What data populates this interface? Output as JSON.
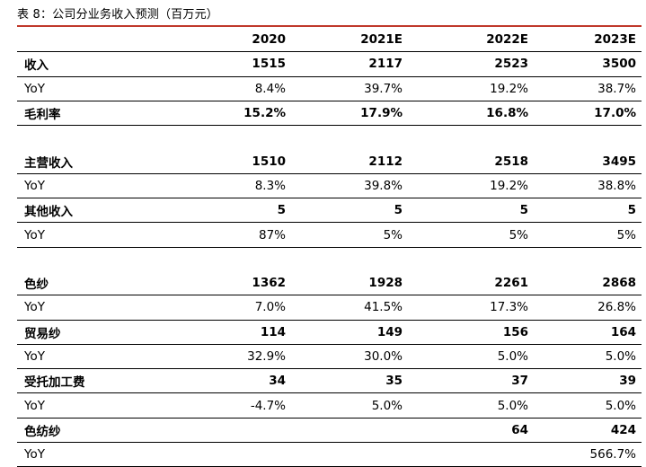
{
  "caption": "表 8：公司分业务收入预测（百万元）",
  "columns": [
    "",
    "2020",
    "2021E",
    "2022E",
    "2023E"
  ],
  "rows": [
    {
      "label": "收入",
      "values": [
        "1515",
        "2117",
        "2523",
        "3500"
      ],
      "bold": true
    },
    {
      "label": "YoY",
      "values": [
        "8.4%",
        "39.7%",
        "19.2%",
        "38.7%"
      ],
      "bold": false
    },
    {
      "label": "毛利率",
      "values": [
        "15.2%",
        "17.9%",
        "16.8%",
        "17.0%"
      ],
      "bold": true
    },
    {
      "label": "",
      "values": [
        "",
        "",
        "",
        ""
      ],
      "bold": false
    },
    {
      "label": "主营收入",
      "values": [
        "1510",
        "2112",
        "2518",
        "3495"
      ],
      "bold": true
    },
    {
      "label": "YoY",
      "values": [
        "8.3%",
        "39.8%",
        "19.2%",
        "38.8%"
      ],
      "bold": false
    },
    {
      "label": "其他收入",
      "values": [
        "5",
        "5",
        "5",
        "5"
      ],
      "bold": true
    },
    {
      "label": "YoY",
      "values": [
        "87%",
        "5%",
        "5%",
        "5%"
      ],
      "bold": false
    },
    {
      "label": "",
      "values": [
        "",
        "",
        "",
        ""
      ],
      "bold": false
    },
    {
      "label": "色纱",
      "values": [
        "1362",
        "1928",
        "2261",
        "2868"
      ],
      "bold": true
    },
    {
      "label": "YoY",
      "values": [
        "7.0%",
        "41.5%",
        "17.3%",
        "26.8%"
      ],
      "bold": false
    },
    {
      "label": "贸易纱",
      "values": [
        "114",
        "149",
        "156",
        "164"
      ],
      "bold": true
    },
    {
      "label": "YoY",
      "values": [
        "32.9%",
        "30.0%",
        "5.0%",
        "5.0%"
      ],
      "bold": false
    },
    {
      "label": "受托加工费",
      "values": [
        "34",
        "35",
        "37",
        "39"
      ],
      "bold": true
    },
    {
      "label": "YoY",
      "values": [
        "-4.7%",
        "5.0%",
        "5.0%",
        "5.0%"
      ],
      "bold": false
    },
    {
      "label": "色纺纱",
      "values": [
        "",
        "",
        "64",
        "424"
      ],
      "bold": true
    },
    {
      "label": "YoY",
      "values": [
        "",
        "",
        "",
        "566.7%"
      ],
      "bold": false
    }
  ]
}
